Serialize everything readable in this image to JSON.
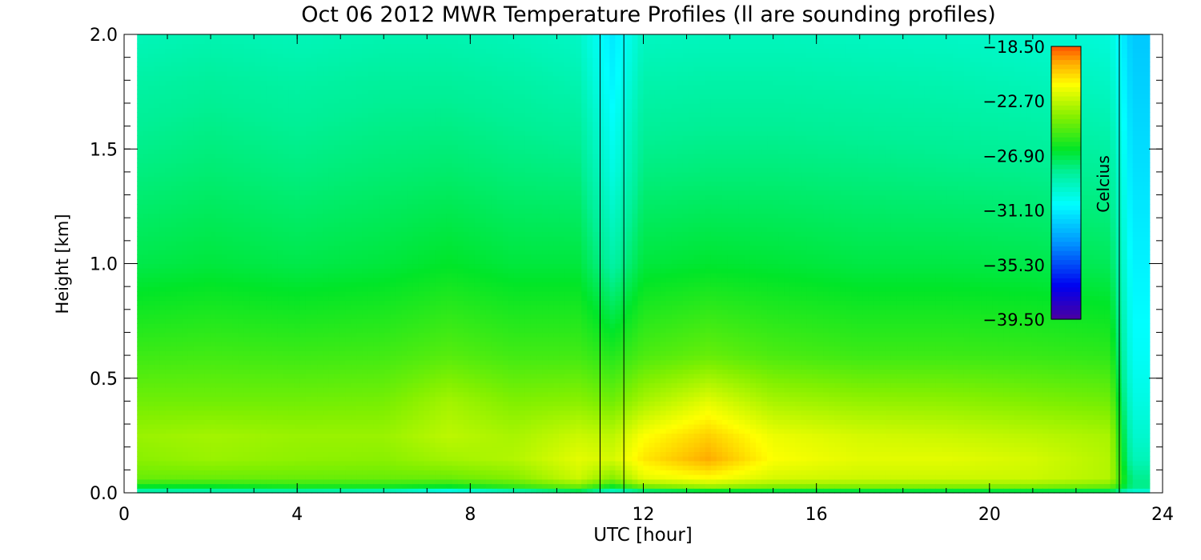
{
  "chart_data": {
    "type": "heatmap",
    "title": "Oct 06 2012 MWR Temperature Profiles (ll are sounding profiles)",
    "xlabel": "UTC [hour]",
    "ylabel": "Height [km]",
    "xlim": [
      0,
      24
    ],
    "ylim": [
      0,
      2
    ],
    "x_ticks": [
      "0",
      "4",
      "8",
      "12",
      "16",
      "20",
      "24"
    ],
    "y_ticks": [
      "0.0",
      "0.5",
      "1.0",
      "1.5",
      "2.0"
    ],
    "colorbar": {
      "label": "Celcius",
      "range": [
        -39.5,
        -18.5
      ],
      "tick_labels": [
        "-18.50",
        "-22.70",
        "-26.90",
        "-31.10",
        "-35.30",
        "-39.50"
      ]
    },
    "data_start_hour": 0.3,
    "data_end_hour": 23.7,
    "sounding_times": [
      11.0,
      11.55,
      23.0
    ],
    "heights_km": [
      0.0,
      0.02,
      0.06,
      0.15,
      0.25,
      0.4,
      0.6,
      1.0,
      1.4,
      1.8,
      2.0
    ],
    "times_hour": [
      0.3,
      2,
      4,
      6,
      7.5,
      9,
      10.5,
      11.3,
      12,
      13.5,
      15,
      17,
      19,
      21,
      22.8,
      23.3,
      23.7
    ],
    "temperature_c": [
      [
        -30,
        -30,
        -30,
        -31,
        -33,
        -31,
        -29,
        -31,
        -30,
        -29,
        -29,
        -29,
        -29,
        -29,
        -29,
        -31,
        -31
      ],
      [
        -27,
        -27,
        -26.5,
        -26.5,
        -27,
        -26,
        -25,
        -27,
        -25,
        -24,
        -24.5,
        -24.5,
        -24.5,
        -24.5,
        -25,
        -28,
        -28
      ],
      [
        -24.5,
        -24.5,
        -24.5,
        -24.5,
        -24.5,
        -24,
        -22.5,
        -24,
        -22,
        -21.5,
        -22.3,
        -22.5,
        -22.5,
        -22.5,
        -23,
        -28,
        -28
      ],
      [
        -23.8,
        -23.5,
        -23.7,
        -23.8,
        -23.3,
        -23,
        -22,
        -22.3,
        -21,
        -19.8,
        -21.5,
        -22,
        -22,
        -22.3,
        -23,
        -29,
        -29
      ],
      [
        -23.5,
        -23.3,
        -23.5,
        -23.5,
        -22.8,
        -23.2,
        -22.5,
        -22.8,
        -21.5,
        -20.5,
        -21.8,
        -22.3,
        -22.5,
        -22.8,
        -23.2,
        -29.5,
        -29.5
      ],
      [
        -24.3,
        -24.3,
        -24.3,
        -24.2,
        -23.3,
        -24,
        -23.8,
        -24.3,
        -23.2,
        -22,
        -23.2,
        -23.6,
        -23.7,
        -24,
        -24.3,
        -30,
        -30
      ],
      [
        -25.3,
        -25.2,
        -25.3,
        -25.2,
        -24.8,
        -25.2,
        -25.2,
        -25.8,
        -25,
        -24.5,
        -25,
        -25.3,
        -25.3,
        -25.4,
        -25.6,
        -30.5,
        -30.5
      ],
      [
        -27,
        -26.8,
        -27,
        -26.8,
        -26.5,
        -26.8,
        -26.8,
        -28.5,
        -26.8,
        -26.6,
        -26.7,
        -26.9,
        -26.9,
        -27,
        -27.2,
        -31,
        -31
      ],
      [
        -27.8,
        -27.6,
        -27.8,
        -27.6,
        -27.5,
        -27.7,
        -27.8,
        -30,
        -27.8,
        -27.7,
        -27.7,
        -27.8,
        -27.9,
        -28,
        -28.2,
        -31.5,
        -31.5
      ],
      [
        -28.5,
        -28.3,
        -28.5,
        -28.3,
        -28.3,
        -28.5,
        -28.8,
        -31,
        -28.7,
        -28.6,
        -28.6,
        -28.7,
        -28.8,
        -29,
        -29.3,
        -32,
        -32
      ],
      [
        -29,
        -28.8,
        -29,
        -28.8,
        -28.8,
        -29,
        -29.3,
        -31.3,
        -29.2,
        -29.1,
        -29.1,
        -29.2,
        -29.3,
        -29.5,
        -29.8,
        -32.2,
        -32.2
      ]
    ]
  }
}
